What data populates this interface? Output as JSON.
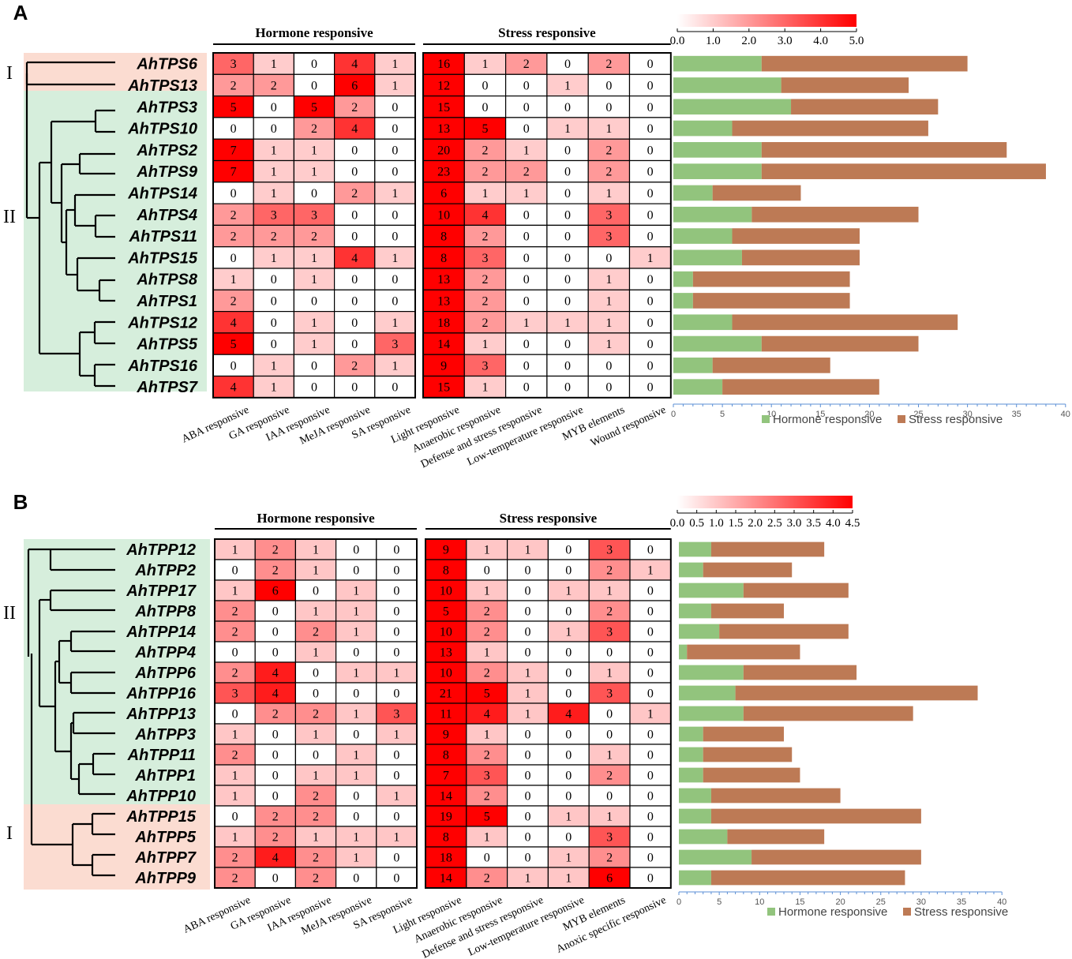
{
  "colors": {
    "heat_max": "#ff0000",
    "heat_min": "#ffffff",
    "hormone_bar": "#92c47d",
    "stress_bar": "#bd7a55",
    "clade_green": "#d6eedc",
    "clade_pink": "#fbdcd1",
    "axis_blue": "#5b8fd6"
  },
  "chart_data": [
    {
      "type": "heatmap",
      "panel_label": "A",
      "group_labels": {
        "hormone": "Hormone responsive",
        "stress": "Stress responsive"
      },
      "clade_labels": [
        "I",
        "II"
      ],
      "color_scale": {
        "min": 0,
        "max": 5,
        "ticks": [
          "0.0",
          "1.0",
          "2.0",
          "3.0",
          "4.0",
          "5.0"
        ]
      },
      "genes": [
        "AhTPS6",
        "AhTPS13",
        "AhTPS3",
        "AhTPS10",
        "AhTPS2",
        "AhTPS9",
        "AhTPS14",
        "AhTPS4",
        "AhTPS11",
        "AhTPS15",
        "AhTPS8",
        "AhTPS1",
        "AhTPS12",
        "AhTPS5",
        "AhTPS16",
        "AhTPS7"
      ],
      "hormone_columns": [
        "ABA responsive",
        "GA responsive",
        "IAA responsive",
        "MeJA responsive",
        "SA responsive"
      ],
      "stress_columns": [
        "Light responsive",
        "Anaerobic responsive",
        "Defense and stress responsive",
        "Low-temperature responsive",
        "MYB elements",
        "Wound responsive"
      ],
      "hormone_values": [
        [
          3,
          1,
          0,
          4,
          1
        ],
        [
          2,
          2,
          0,
          6,
          1
        ],
        [
          5,
          0,
          5,
          2,
          0
        ],
        [
          0,
          0,
          2,
          4,
          0
        ],
        [
          7,
          1,
          1,
          0,
          0
        ],
        [
          7,
          1,
          1,
          0,
          0
        ],
        [
          0,
          1,
          0,
          2,
          1
        ],
        [
          2,
          3,
          3,
          0,
          0
        ],
        [
          2,
          2,
          2,
          0,
          0
        ],
        [
          0,
          1,
          1,
          4,
          1
        ],
        [
          1,
          0,
          1,
          0,
          0
        ],
        [
          2,
          0,
          0,
          0,
          0
        ],
        [
          4,
          0,
          1,
          0,
          1
        ],
        [
          5,
          0,
          1,
          0,
          3
        ],
        [
          0,
          1,
          0,
          2,
          1
        ],
        [
          4,
          1,
          0,
          0,
          0
        ]
      ],
      "stress_values": [
        [
          16,
          1,
          2,
          0,
          2,
          0
        ],
        [
          12,
          0,
          0,
          1,
          0,
          0
        ],
        [
          15,
          0,
          0,
          0,
          0,
          0
        ],
        [
          13,
          5,
          0,
          1,
          1,
          0
        ],
        [
          20,
          2,
          1,
          0,
          2,
          0
        ],
        [
          23,
          2,
          2,
          0,
          2,
          0
        ],
        [
          6,
          1,
          1,
          0,
          1,
          0
        ],
        [
          10,
          4,
          0,
          0,
          3,
          0
        ],
        [
          8,
          2,
          0,
          0,
          3,
          0
        ],
        [
          8,
          3,
          0,
          0,
          0,
          1
        ],
        [
          13,
          2,
          0,
          0,
          1,
          0
        ],
        [
          13,
          2,
          0,
          0,
          1,
          0
        ],
        [
          18,
          2,
          1,
          1,
          1,
          0
        ],
        [
          14,
          1,
          0,
          0,
          1,
          0
        ],
        [
          9,
          3,
          0,
          0,
          0,
          0
        ],
        [
          15,
          1,
          0,
          0,
          0,
          0
        ]
      ],
      "bar_axis": {
        "min": 0,
        "max": 40,
        "ticks": [
          "0",
          "5",
          "10",
          "15",
          "20",
          "25",
          "30",
          "35",
          "40"
        ]
      },
      "bar_series": [
        {
          "name": "Hormone responsive",
          "values": [
            9,
            11,
            12,
            6,
            9,
            9,
            4,
            8,
            6,
            7,
            2,
            2,
            6,
            9,
            4,
            5
          ]
        },
        {
          "name": "Stress responsive",
          "values": [
            21,
            13,
            15,
            20,
            25,
            29,
            9,
            17,
            13,
            12,
            16,
            16,
            23,
            16,
            12,
            16
          ]
        }
      ]
    },
    {
      "type": "heatmap",
      "panel_label": "B",
      "group_labels": {
        "hormone": "Hormone responsive",
        "stress": "Stress responsive"
      },
      "clade_labels": [
        "II",
        "I"
      ],
      "color_scale": {
        "min": 0,
        "max": 4.5,
        "ticks": [
          "0.0",
          "0.5",
          "1.0",
          "1.5",
          "2.0",
          "2.5",
          "3.0",
          "3.5",
          "4.0",
          "4.5"
        ]
      },
      "genes": [
        "AhTPP12",
        "AhTPP2",
        "AhTPP17",
        "AhTPP8",
        "AhTPP14",
        "AhTPP4",
        "AhTPP6",
        "AhTPP16",
        "AhTPP13",
        "AhTPP3",
        "AhTPP11",
        "AhTPP1",
        "AhTPP10",
        "AhTPP15",
        "AhTPP5",
        "AhTPP7",
        "AhTPP9"
      ],
      "hormone_columns": [
        "ABA responsive",
        "GA responsive",
        "IAA responsive",
        "MeJA responsive",
        "SA responsive"
      ],
      "stress_columns": [
        "Light responsive",
        "Anaerobic responsive",
        "Defense and stress responsive",
        "Low-temperature responsive",
        "MYB elements",
        "Anoxic specific responsive"
      ],
      "hormone_values": [
        [
          1,
          2,
          1,
          0,
          0
        ],
        [
          0,
          2,
          1,
          0,
          0
        ],
        [
          1,
          6,
          0,
          1,
          0
        ],
        [
          2,
          0,
          1,
          1,
          0
        ],
        [
          2,
          0,
          2,
          1,
          0
        ],
        [
          0,
          0,
          1,
          0,
          0
        ],
        [
          2,
          4,
          0,
          1,
          1
        ],
        [
          3,
          4,
          0,
          0,
          0
        ],
        [
          0,
          2,
          2,
          1,
          3
        ],
        [
          1,
          0,
          1,
          0,
          1
        ],
        [
          2,
          0,
          0,
          1,
          0
        ],
        [
          1,
          0,
          1,
          1,
          0
        ],
        [
          1,
          0,
          2,
          0,
          1
        ],
        [
          0,
          2,
          2,
          0,
          0
        ],
        [
          1,
          2,
          1,
          1,
          1
        ],
        [
          2,
          4,
          2,
          1,
          0
        ],
        [
          2,
          0,
          2,
          0,
          0
        ]
      ],
      "stress_values": [
        [
          9,
          1,
          1,
          0,
          3,
          0
        ],
        [
          8,
          0,
          0,
          0,
          2,
          1
        ],
        [
          10,
          1,
          0,
          1,
          1,
          0
        ],
        [
          5,
          2,
          0,
          0,
          2,
          0
        ],
        [
          10,
          2,
          0,
          1,
          3,
          0
        ],
        [
          13,
          1,
          0,
          0,
          0,
          0
        ],
        [
          10,
          2,
          1,
          0,
          1,
          0
        ],
        [
          21,
          5,
          1,
          0,
          3,
          0
        ],
        [
          11,
          4,
          1,
          4,
          0,
          1
        ],
        [
          9,
          1,
          0,
          0,
          0,
          0
        ],
        [
          8,
          2,
          0,
          0,
          1,
          0
        ],
        [
          7,
          3,
          0,
          0,
          2,
          0
        ],
        [
          14,
          2,
          0,
          0,
          0,
          0
        ],
        [
          19,
          5,
          0,
          1,
          1,
          0
        ],
        [
          8,
          1,
          0,
          0,
          3,
          0
        ],
        [
          18,
          0,
          0,
          1,
          2,
          0
        ],
        [
          14,
          2,
          1,
          1,
          6,
          0
        ]
      ],
      "bar_axis": {
        "min": 0,
        "max": 40,
        "ticks": [
          "0",
          "5",
          "10",
          "15",
          "20",
          "25",
          "30",
          "35",
          "40"
        ]
      },
      "bar_series": [
        {
          "name": "Hormone responsive",
          "values": [
            4,
            3,
            8,
            4,
            5,
            1,
            8,
            7,
            8,
            3,
            3,
            3,
            4,
            4,
            6,
            9,
            4
          ]
        },
        {
          "name": "Stress responsive",
          "values": [
            14,
            11,
            13,
            9,
            16,
            14,
            14,
            30,
            21,
            10,
            11,
            12,
            16,
            26,
            12,
            21,
            24
          ]
        }
      ]
    }
  ]
}
